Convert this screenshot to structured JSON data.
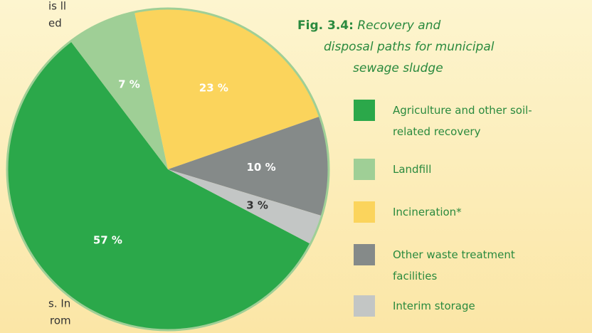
{
  "text_fragments": [
    "is ll",
    "ed",
    "s. In",
    "rom"
  ],
  "chart_data": {
    "type": "pie",
    "title_label": "Fig. 3.4:",
    "title": [
      "Recovery and",
      "disposal paths for municipal",
      "sewage sludge"
    ],
    "categories": [
      "Agriculture and other soil-related recovery",
      "Landfill",
      "Incineration*",
      "Other waste treatment facilities",
      "Interim storage"
    ],
    "values": [
      57,
      7,
      23,
      10,
      3
    ],
    "value_labels": [
      "57 %",
      "7 %",
      "23 %",
      "10 %",
      "3 %"
    ],
    "colors": [
      "#2ba84a",
      "#9fcf96",
      "#fbd45c",
      "#858a89",
      "#c3c6c5"
    ]
  }
}
